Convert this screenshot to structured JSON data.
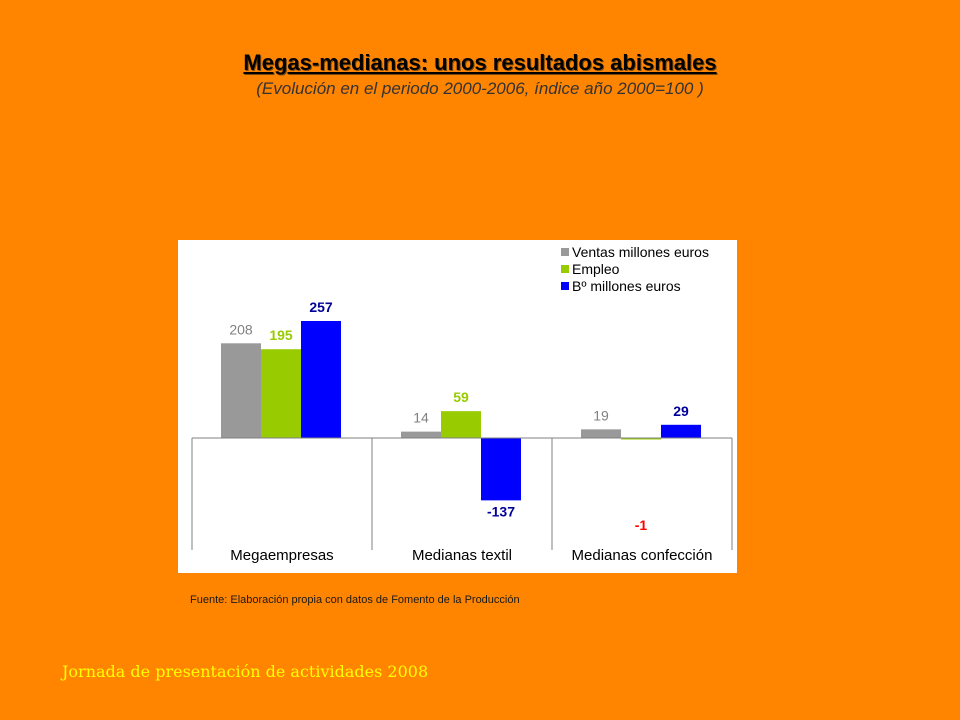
{
  "slide": {
    "title": "Megas-medianas: unos resultados abismales",
    "subtitle": "(Evolución en el periodo 2000-2006, índice año 2000=100 )",
    "source": "Fuente: Elaboración propia con datos de Fomento de la Producción",
    "footer": "Jornada de presentación de actividades 2008"
  },
  "chart_data": {
    "type": "bar",
    "title": "",
    "xlabel": "",
    "ylabel": "",
    "categories": [
      "Megaempresas",
      "Medianas textil",
      "Medianas confección"
    ],
    "series": [
      {
        "name": "Ventas millones euros",
        "values": [
          208,
          14,
          19
        ],
        "color": "#999999",
        "label_color": "#808080",
        "label_bold": false
      },
      {
        "name": "Empleo",
        "values": [
          195,
          59,
          -1
        ],
        "color": "#99cc00",
        "label_color": "#99cc00",
        "label_bold": true
      },
      {
        "name": "Bº millones euros",
        "values": [
          257,
          -137,
          29
        ],
        "color": "#0000ff",
        "label_color": "#000099",
        "label_bold": true
      }
    ],
    "value_labels": [
      [
        "208",
        "14",
        "19"
      ],
      [
        "195",
        "59",
        "-1"
      ],
      [
        "257",
        "-137",
        "29"
      ]
    ],
    "special_label_colors": {
      "-1": "#ff0000"
    },
    "ylim": [
      -150,
      300
    ],
    "legend_position": "top-right",
    "grid": false
  }
}
